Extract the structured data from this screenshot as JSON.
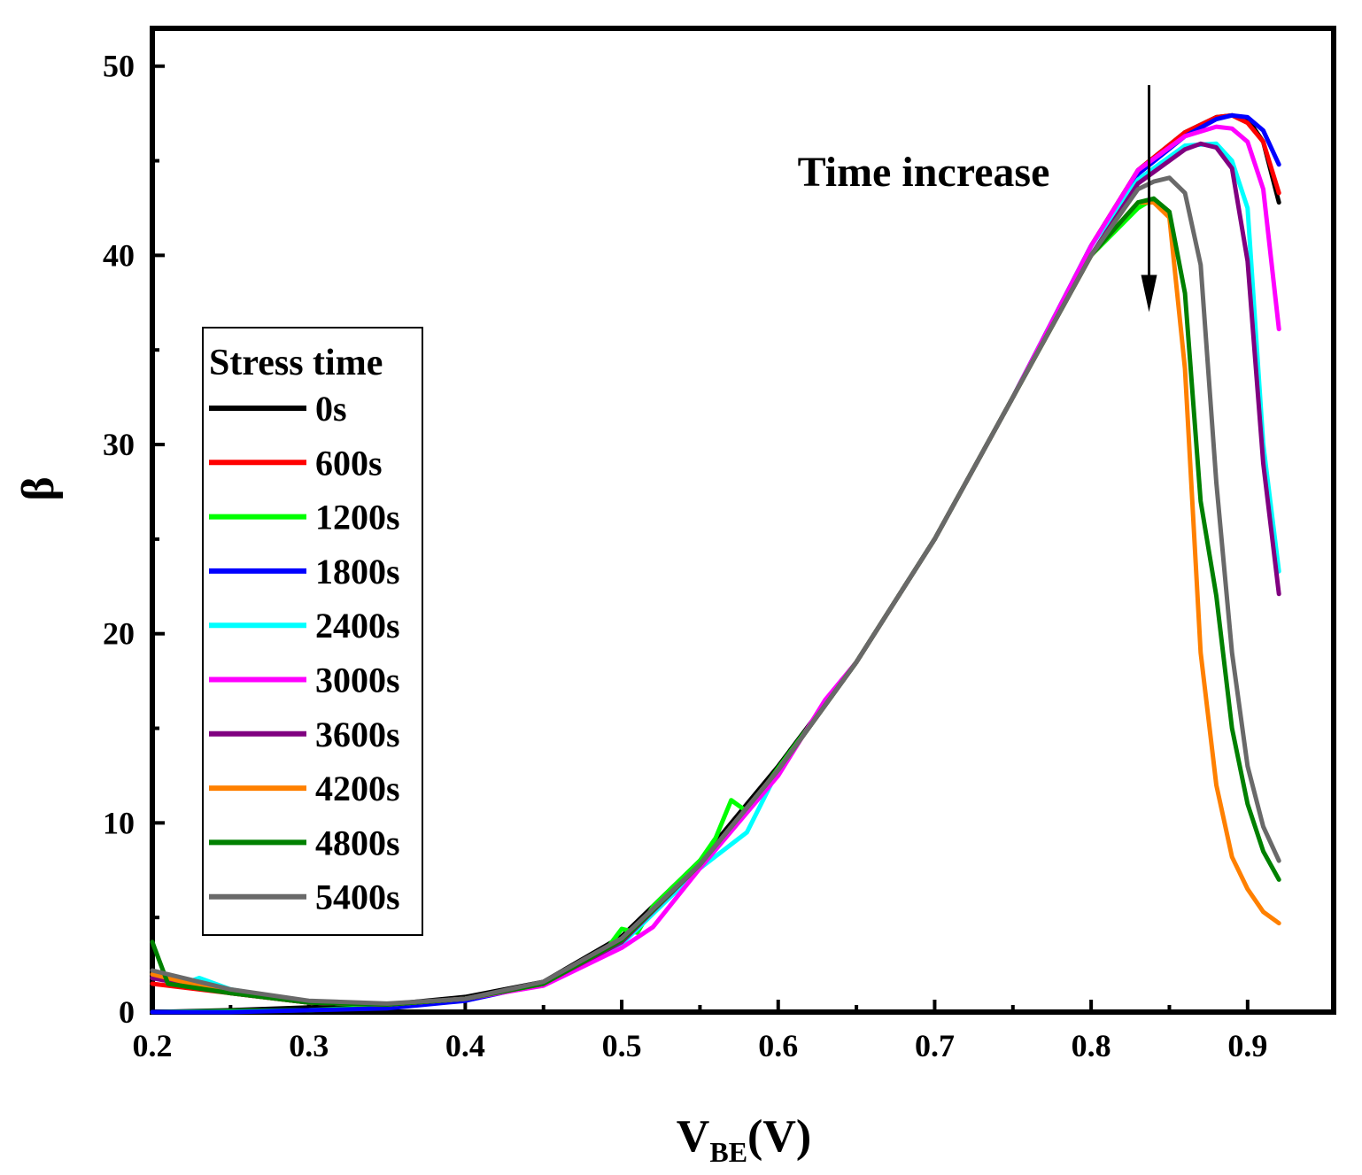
{
  "chart_data": {
    "type": "line",
    "title": "",
    "xlabel_main": "V",
    "xlabel_sub": "BE",
    "xlabel_unit": "(V)",
    "ylabel": "β",
    "xlim": [
      0.2,
      0.955
    ],
    "ylim": [
      0,
      52
    ],
    "x_ticks": [
      0.2,
      0.3,
      0.4,
      0.5,
      0.6,
      0.7,
      0.8,
      0.9
    ],
    "x_tick_labels": [
      "0.2",
      "0.3",
      "0.4",
      "0.5",
      "0.6",
      "0.7",
      "0.8",
      "0.9"
    ],
    "y_ticks": [
      0,
      10,
      20,
      30,
      40,
      50
    ],
    "y_tick_labels": [
      "0",
      "10",
      "20",
      "30",
      "40",
      "50"
    ],
    "annotation": {
      "text": "Time increase",
      "arrow_x": 0.837,
      "arrow_from_y": 49,
      "arrow_to_y": 37
    },
    "legend": {
      "title": "Stress time",
      "position": "center-left"
    },
    "series": [
      {
        "name": "0s",
        "color": "#000000",
        "x": [
          0.2,
          0.25,
          0.3,
          0.35,
          0.4,
          0.45,
          0.5,
          0.55,
          0.6,
          0.65,
          0.7,
          0.75,
          0.8,
          0.83,
          0.86,
          0.88,
          0.89,
          0.9,
          0.91,
          0.92
        ],
        "y": [
          0.0,
          0.1,
          0.25,
          0.4,
          0.8,
          1.6,
          4.0,
          8.0,
          13.0,
          18.5,
          25.0,
          32.5,
          40.5,
          44.5,
          46.5,
          47.3,
          47.4,
          47.2,
          46.0,
          42.8
        ]
      },
      {
        "name": "600s",
        "color": "#ff0000",
        "x": [
          0.2,
          0.25,
          0.3,
          0.35,
          0.4,
          0.45,
          0.5,
          0.53,
          0.55,
          0.6,
          0.65,
          0.7,
          0.75,
          0.8,
          0.83,
          0.86,
          0.88,
          0.89,
          0.9,
          0.91,
          0.92
        ],
        "y": [
          1.5,
          1.0,
          0.5,
          0.4,
          0.7,
          1.5,
          3.8,
          6.3,
          7.8,
          12.8,
          18.5,
          25.0,
          32.5,
          40.5,
          44.5,
          46.5,
          47.3,
          47.4,
          47.0,
          46.0,
          43.3
        ]
      },
      {
        "name": "1200s",
        "color": "#00ff00",
        "x": [
          0.2,
          0.25,
          0.3,
          0.35,
          0.4,
          0.45,
          0.49,
          0.5,
          0.51,
          0.52,
          0.55,
          0.56,
          0.57,
          0.58,
          0.6,
          0.65,
          0.7,
          0.75,
          0.8,
          0.83,
          0.84
        ],
        "y": [
          0.0,
          0.05,
          0.1,
          0.3,
          0.7,
          1.5,
          3.3,
          4.4,
          4.2,
          5.6,
          8.0,
          9.2,
          11.2,
          10.6,
          12.9,
          18.5,
          25.0,
          32.5,
          40.0,
          42.5,
          43.0
        ]
      },
      {
        "name": "1800s",
        "color": "#0000ff",
        "x": [
          0.2,
          0.25,
          0.3,
          0.35,
          0.4,
          0.45,
          0.5,
          0.55,
          0.6,
          0.65,
          0.7,
          0.75,
          0.8,
          0.83,
          0.86,
          0.88,
          0.89,
          0.9,
          0.91,
          0.92
        ],
        "y": [
          0.0,
          0.0,
          0.1,
          0.2,
          0.6,
          1.5,
          3.8,
          7.8,
          12.8,
          18.5,
          25.0,
          32.5,
          40.5,
          44.3,
          46.3,
          47.2,
          47.4,
          47.3,
          46.6,
          44.8
        ]
      },
      {
        "name": "2400s",
        "color": "#00ffff",
        "x": [
          0.2,
          0.22,
          0.23,
          0.25,
          0.3,
          0.35,
          0.4,
          0.45,
          0.5,
          0.55,
          0.58,
          0.6,
          0.65,
          0.7,
          0.75,
          0.8,
          0.83,
          0.86,
          0.88,
          0.89,
          0.9,
          0.91,
          0.92
        ],
        "y": [
          1.8,
          1.5,
          1.8,
          1.2,
          0.5,
          0.4,
          0.7,
          1.5,
          3.6,
          7.6,
          9.5,
          12.8,
          18.5,
          25.0,
          32.5,
          40.5,
          44.0,
          45.8,
          45.9,
          45.0,
          42.5,
          30.0,
          23.3
        ]
      },
      {
        "name": "3000s",
        "color": "#ff00ff",
        "x": [
          0.2,
          0.25,
          0.3,
          0.35,
          0.4,
          0.45,
          0.5,
          0.52,
          0.55,
          0.6,
          0.63,
          0.65,
          0.7,
          0.75,
          0.8,
          0.83,
          0.86,
          0.88,
          0.89,
          0.9,
          0.91,
          0.92
        ],
        "y": [
          1.8,
          1.0,
          0.5,
          0.4,
          0.7,
          1.4,
          3.4,
          4.5,
          7.6,
          12.5,
          16.5,
          18.5,
          25.0,
          32.5,
          40.5,
          44.5,
          46.3,
          46.8,
          46.7,
          46.0,
          43.5,
          36.1
        ]
      },
      {
        "name": "3600s",
        "color": "#800080",
        "x": [
          0.2,
          0.25,
          0.3,
          0.35,
          0.4,
          0.45,
          0.5,
          0.55,
          0.6,
          0.65,
          0.7,
          0.75,
          0.8,
          0.83,
          0.86,
          0.87,
          0.88,
          0.89,
          0.9,
          0.91,
          0.92
        ],
        "y": [
          1.8,
          1.0,
          0.5,
          0.4,
          0.7,
          1.5,
          3.7,
          7.8,
          12.8,
          18.5,
          25.0,
          32.5,
          40.0,
          43.8,
          45.6,
          45.9,
          45.7,
          44.6,
          39.7,
          29.0,
          22.1
        ]
      },
      {
        "name": "4200s",
        "color": "#ff8000",
        "x": [
          0.2,
          0.25,
          0.3,
          0.35,
          0.4,
          0.45,
          0.5,
          0.55,
          0.6,
          0.65,
          0.7,
          0.75,
          0.8,
          0.83,
          0.84,
          0.85,
          0.855,
          0.86,
          0.87,
          0.88,
          0.89,
          0.9,
          0.91,
          0.92
        ],
        "y": [
          2.0,
          1.0,
          0.5,
          0.4,
          0.7,
          1.5,
          3.8,
          7.8,
          12.8,
          18.5,
          25.0,
          32.5,
          40.0,
          42.8,
          42.8,
          42.0,
          38.0,
          34.0,
          19.0,
          12.0,
          8.2,
          6.5,
          5.3,
          4.7
        ]
      },
      {
        "name": "4800s",
        "color": "#008000",
        "x": [
          0.2,
          0.21,
          0.25,
          0.3,
          0.35,
          0.4,
          0.45,
          0.5,
          0.55,
          0.6,
          0.65,
          0.7,
          0.75,
          0.8,
          0.83,
          0.84,
          0.85,
          0.86,
          0.87,
          0.88,
          0.89,
          0.9,
          0.91,
          0.92
        ],
        "y": [
          3.7,
          1.5,
          1.0,
          0.5,
          0.4,
          0.7,
          1.5,
          3.8,
          7.8,
          12.8,
          18.5,
          25.0,
          32.5,
          40.0,
          42.8,
          43.0,
          42.3,
          38.0,
          27.0,
          22.0,
          15.0,
          11.0,
          8.5,
          7.0
        ]
      },
      {
        "name": "5400s",
        "color": "#696969",
        "x": [
          0.2,
          0.25,
          0.3,
          0.35,
          0.4,
          0.45,
          0.5,
          0.55,
          0.6,
          0.65,
          0.7,
          0.75,
          0.8,
          0.83,
          0.84,
          0.85,
          0.86,
          0.87,
          0.88,
          0.89,
          0.9,
          0.91,
          0.92
        ],
        "y": [
          2.2,
          1.2,
          0.6,
          0.45,
          0.7,
          1.6,
          3.9,
          7.8,
          12.8,
          18.5,
          25.0,
          32.5,
          40.0,
          43.5,
          43.9,
          44.1,
          43.3,
          39.5,
          28.0,
          19.0,
          13.0,
          9.8,
          8.0
        ]
      }
    ]
  }
}
